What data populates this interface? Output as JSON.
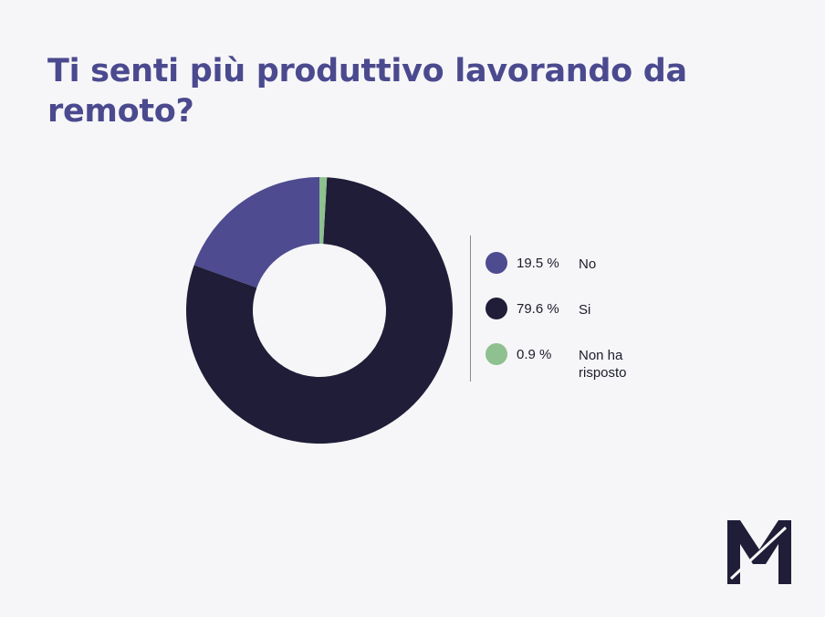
{
  "title": "Ti senti più produttivo lavorando da remoto?",
  "chart_data": {
    "type": "pie",
    "donut": true,
    "start_angle_deg": 0,
    "direction": "counterclockwise",
    "slices": [
      {
        "label": "No",
        "value": 19.5,
        "pct_text": "19.5 %",
        "color": "#4e4b90"
      },
      {
        "label": "Si",
        "value": 79.6,
        "pct_text": "79.6 %",
        "color": "#1f1d37"
      },
      {
        "label": "Non ha risposto",
        "value": 0.9,
        "pct_text": "0.9 %",
        "color": "#8fc08f"
      }
    ],
    "legend_placement": "right"
  },
  "logo": {
    "icon": "m-logo-icon",
    "color": "#1f1d37"
  }
}
